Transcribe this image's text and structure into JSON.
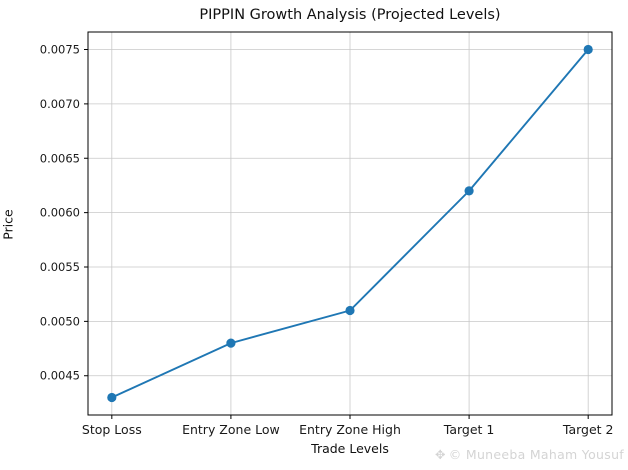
{
  "chart": {
    "title": "PIPPIN Growth Analysis (Projected Levels)",
    "xlabel": "Trade Levels",
    "ylabel": "Price",
    "watermark_icon": "✥",
    "watermark_text": "© Muneeba Maham Yousuf",
    "colors": {
      "line": "#1f77b4",
      "marker": "#1f77b4",
      "grid": "#c8c8c8",
      "axis": "#000000",
      "tick_text": "#1a1a1a",
      "watermark": "#d4d4d4",
      "background": "#ffffff"
    }
  },
  "chart_data": {
    "type": "line",
    "title": "PIPPIN Growth Analysis (Projected Levels)",
    "xlabel": "Trade Levels",
    "ylabel": "Price",
    "categories": [
      "Stop Loss",
      "Entry Zone Low",
      "Entry Zone High",
      "Target 1",
      "Target 2"
    ],
    "values": [
      0.0043,
      0.0048,
      0.0051,
      0.0062,
      0.0075
    ],
    "yticks": [
      0.0045,
      0.005,
      0.0055,
      0.006,
      0.0065,
      0.007,
      0.0075
    ],
    "ytick_format_decimals": 4,
    "ylim": [
      0.004139,
      0.007661
    ],
    "grid": true,
    "legend": "none",
    "marker": "o",
    "marker_radius": 4.6,
    "line_width": 1.9
  }
}
